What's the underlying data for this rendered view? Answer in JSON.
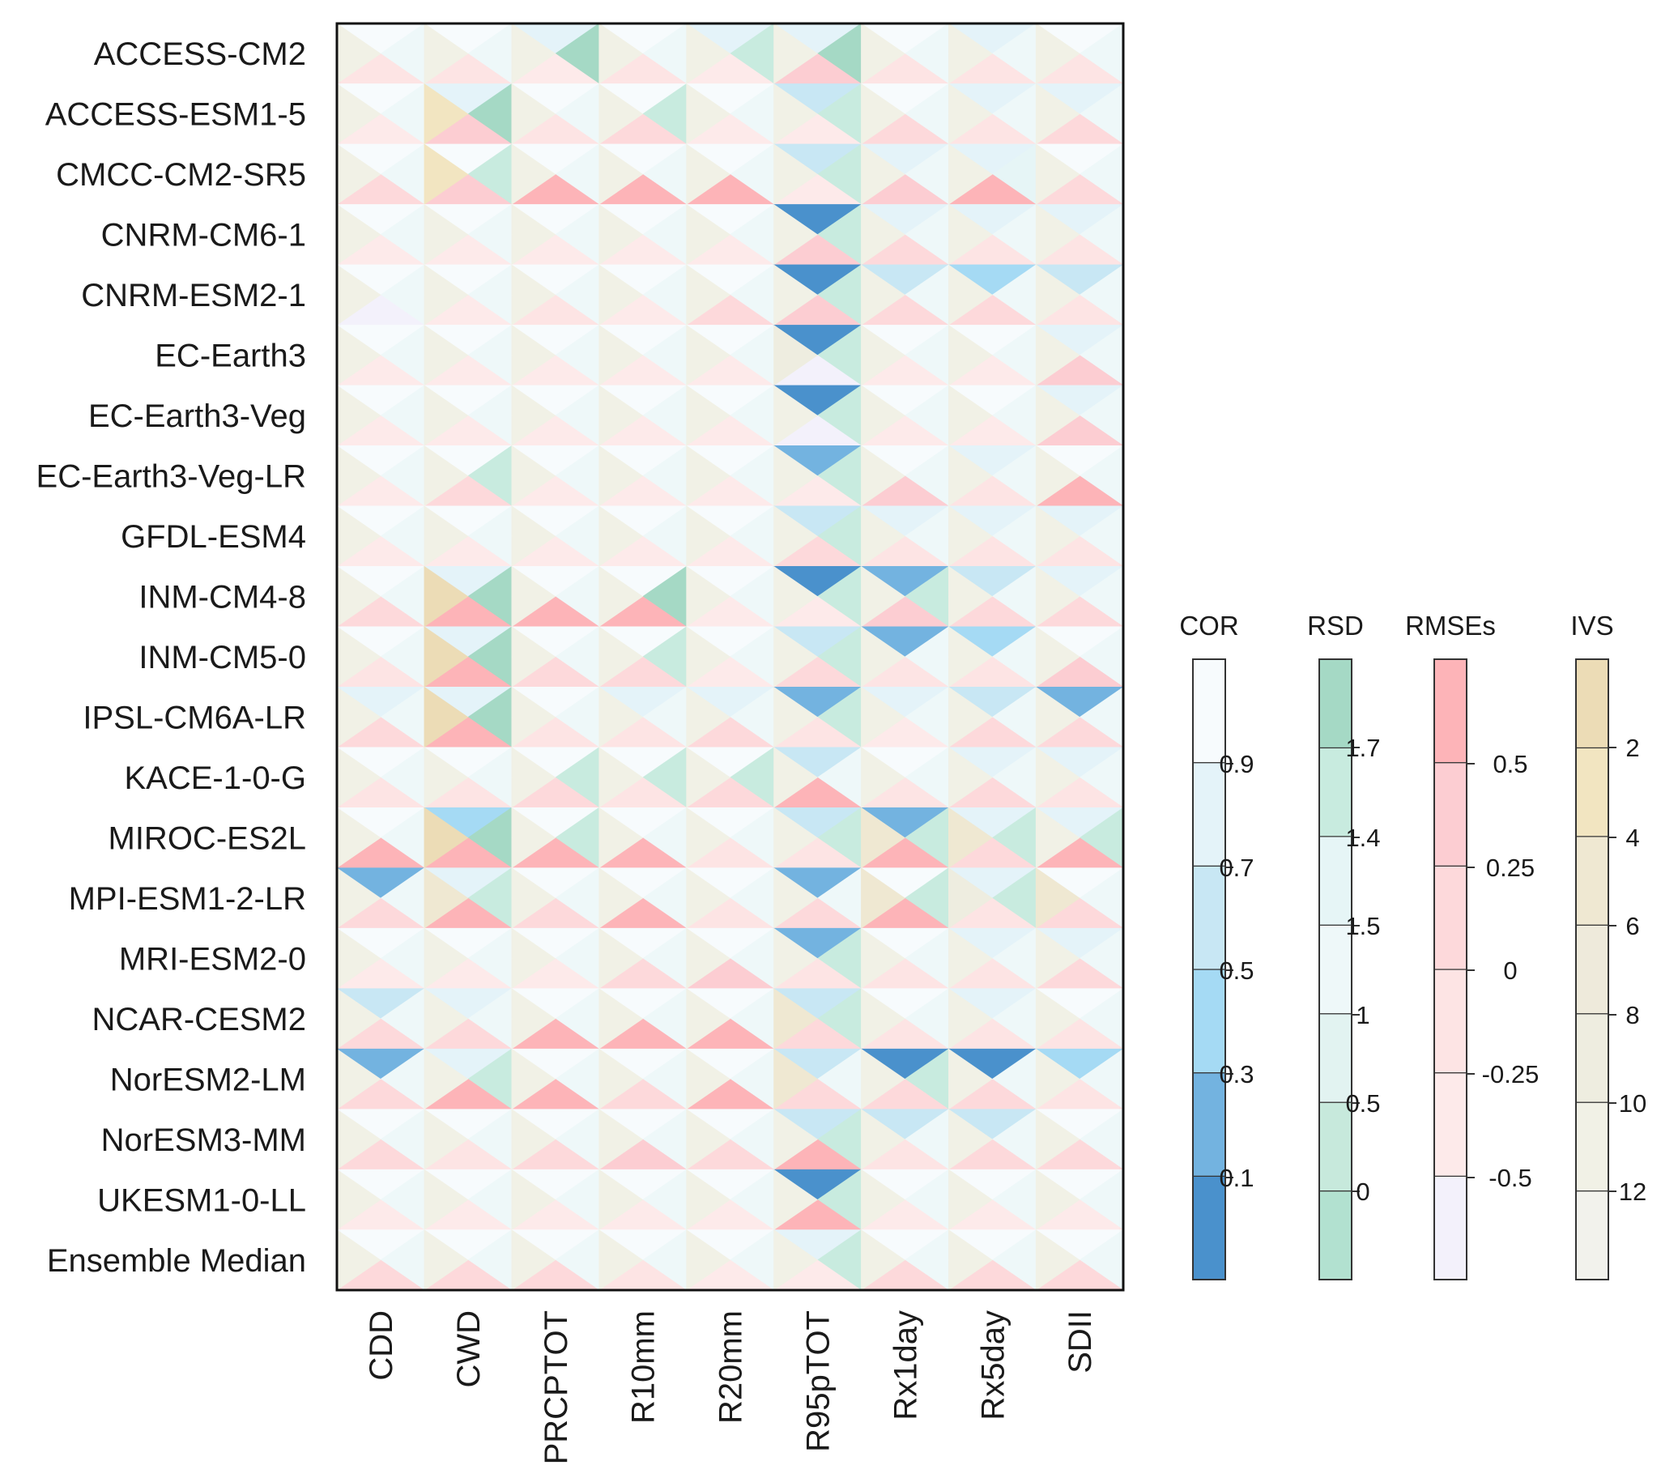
{
  "chart_data": {
    "type": "heatmap",
    "description_of_encoding": "Each cell is split into four triangles: top = COR, right = RSD, bottom = RMSEs, left = IVS; values are class indices into each metric's color scale",
    "models": [
      "ACCESS-CM2",
      "ACCESS-ESM1-5",
      "CMCC-CM2-SR5",
      "CNRM-CM6-1",
      "CNRM-ESM2-1",
      "EC-Earth3",
      "EC-Earth3-Veg",
      "EC-Earth3-Veg-LR",
      "GFDL-ESM4",
      "INM-CM4-8",
      "INM-CM5-0",
      "IPSL-CM6A-LR",
      "KACE-1-0-G",
      "MIROC-ES2L",
      "MPI-ESM1-2-LR",
      "MRI-ESM2-0",
      "NCAR-CESM2",
      "NorESM2-LM",
      "NorESM3-MM",
      "UKESM1-0-LL",
      "Ensemble Median"
    ],
    "indices": [
      "CDD",
      "CWD",
      "PRCPTOT",
      "R10mm",
      "R20mm",
      "R95pTOT",
      "Rx1day",
      "Rx5day",
      "SDII"
    ],
    "legends": [
      {
        "title": "COR",
        "ticks": [
          "0.9",
          "0.7",
          "0.5",
          "0.3",
          "0.1"
        ],
        "colors": [
          "#4a91cc",
          "#73b3e0",
          "#a5daf4",
          "#c8e7f4",
          "#e4f3f9",
          "#f7fbfd"
        ]
      },
      {
        "title": "RSD",
        "ticks": [
          "1.7",
          "1.4",
          "1.5",
          "1",
          "0.5",
          "0"
        ],
        "colors": [
          "#b2e1d0",
          "#c7e9dc",
          "#e2f3f1",
          "#eef8f9",
          "#e6f5f6",
          "#c8ebdf",
          "#a5d9c5"
        ]
      },
      {
        "title": "RMSEs",
        "ticks": [
          "0.5",
          "0.25",
          "0",
          "-0.25",
          "-0.5"
        ],
        "colors": [
          "#f3f1fb",
          "#fdeaea",
          "#fde4e4",
          "#fdd9db",
          "#fccdd2",
          "#fdb4b8"
        ]
      },
      {
        "title": "IVS",
        "ticks": [
          "2",
          "4",
          "6",
          "8",
          "10",
          "12"
        ],
        "colors": [
          "#f2f2ec",
          "#f1f1e6",
          "#eeede0",
          "#eeeadb",
          "#efe8d2",
          "#f2e5c1",
          "#ecdcb6"
        ]
      }
    ],
    "triangle_classes": {
      "COR": [
        [
          5,
          5,
          4,
          5,
          4,
          4,
          5,
          4,
          5
        ],
        [
          5,
          4,
          5,
          5,
          5,
          3,
          5,
          4,
          4
        ],
        [
          5,
          5,
          5,
          5,
          5,
          3,
          4,
          4,
          5
        ],
        [
          5,
          5,
          5,
          5,
          5,
          0,
          4,
          4,
          4
        ],
        [
          5,
          5,
          5,
          5,
          5,
          0,
          3,
          2,
          3
        ],
        [
          5,
          5,
          5,
          5,
          5,
          0,
          5,
          5,
          4
        ],
        [
          5,
          5,
          5,
          5,
          5,
          0,
          5,
          5,
          4
        ],
        [
          5,
          5,
          5,
          5,
          5,
          1,
          5,
          4,
          5
        ],
        [
          5,
          5,
          5,
          5,
          5,
          3,
          4,
          4,
          4
        ],
        [
          5,
          4,
          5,
          5,
          5,
          0,
          1,
          3,
          4
        ],
        [
          5,
          4,
          5,
          5,
          5,
          3,
          1,
          2,
          5
        ],
        [
          4,
          4,
          5,
          4,
          4,
          1,
          4,
          3,
          1
        ],
        [
          5,
          5,
          5,
          5,
          5,
          3,
          5,
          4,
          4
        ],
        [
          5,
          2,
          5,
          5,
          5,
          3,
          1,
          4,
          4
        ],
        [
          1,
          4,
          5,
          5,
          5,
          1,
          5,
          4,
          5
        ],
        [
          5,
          5,
          5,
          5,
          5,
          1,
          5,
          4,
          4
        ],
        [
          3,
          4,
          5,
          5,
          5,
          3,
          5,
          4,
          5
        ],
        [
          1,
          4,
          5,
          5,
          5,
          3,
          0,
          0,
          2
        ],
        [
          5,
          5,
          5,
          5,
          5,
          3,
          3,
          3,
          5
        ],
        [
          5,
          5,
          5,
          5,
          5,
          0,
          5,
          5,
          5
        ],
        [
          5,
          5,
          5,
          5,
          5,
          4,
          5,
          5,
          5
        ]
      ],
      "RSD": [
        [
          3,
          3,
          6,
          3,
          5,
          6,
          3,
          3,
          3
        ],
        [
          3,
          6,
          3,
          5,
          3,
          5,
          3,
          3,
          3
        ],
        [
          3,
          5,
          3,
          3,
          3,
          5,
          3,
          4,
          3
        ],
        [
          3,
          3,
          3,
          3,
          3,
          5,
          3,
          3,
          3
        ],
        [
          3,
          3,
          3,
          3,
          3,
          5,
          3,
          3,
          3
        ],
        [
          3,
          3,
          3,
          3,
          3,
          5,
          3,
          3,
          3
        ],
        [
          3,
          3,
          3,
          3,
          3,
          5,
          3,
          3,
          3
        ],
        [
          3,
          5,
          3,
          3,
          3,
          5,
          3,
          3,
          3
        ],
        [
          3,
          3,
          3,
          3,
          3,
          5,
          3,
          3,
          3
        ],
        [
          3,
          6,
          3,
          6,
          3,
          5,
          5,
          3,
          3
        ],
        [
          3,
          6,
          3,
          5,
          3,
          5,
          3,
          3,
          3
        ],
        [
          3,
          6,
          3,
          3,
          3,
          5,
          3,
          3,
          3
        ],
        [
          3,
          3,
          5,
          5,
          5,
          3,
          3,
          3,
          3
        ],
        [
          3,
          6,
          5,
          3,
          3,
          5,
          5,
          5,
          5
        ],
        [
          3,
          5,
          3,
          3,
          3,
          3,
          5,
          5,
          3
        ],
        [
          3,
          3,
          3,
          3,
          3,
          5,
          3,
          3,
          3
        ],
        [
          3,
          3,
          3,
          3,
          3,
          5,
          3,
          3,
          3
        ],
        [
          3,
          5,
          3,
          3,
          3,
          3,
          5,
          3,
          3
        ],
        [
          3,
          3,
          3,
          3,
          3,
          5,
          3,
          3,
          3
        ],
        [
          3,
          3,
          3,
          3,
          3,
          5,
          3,
          3,
          3
        ],
        [
          3,
          3,
          3,
          3,
          3,
          5,
          3,
          3,
          3
        ]
      ],
      "RMSEs": [
        [
          2,
          2,
          1,
          2,
          1,
          4,
          2,
          2,
          2
        ],
        [
          1,
          4,
          2,
          3,
          1,
          1,
          3,
          2,
          3
        ],
        [
          3,
          4,
          5,
          5,
          5,
          1,
          4,
          5,
          3
        ],
        [
          1,
          1,
          1,
          1,
          1,
          4,
          3,
          2,
          2
        ],
        [
          0,
          1,
          2,
          1,
          3,
          4,
          3,
          3,
          2
        ],
        [
          1,
          1,
          1,
          1,
          1,
          0,
          1,
          1,
          4
        ],
        [
          1,
          1,
          1,
          1,
          1,
          0,
          1,
          1,
          4
        ],
        [
          1,
          3,
          1,
          1,
          1,
          1,
          4,
          2,
          5
        ],
        [
          1,
          1,
          1,
          1,
          1,
          3,
          2,
          2,
          2
        ],
        [
          3,
          5,
          5,
          5,
          1,
          1,
          4,
          3,
          3
        ],
        [
          2,
          5,
          3,
          3,
          1,
          3,
          2,
          2,
          4
        ],
        [
          3,
          5,
          2,
          2,
          3,
          2,
          1,
          3,
          3
        ],
        [
          2,
          2,
          3,
          2,
          3,
          5,
          2,
          3,
          2
        ],
        [
          5,
          5,
          5,
          5,
          2,
          2,
          5,
          3,
          5
        ],
        [
          3,
          5,
          3,
          5,
          2,
          3,
          5,
          2,
          3
        ],
        [
          1,
          1,
          1,
          3,
          4,
          2,
          2,
          2,
          3
        ],
        [
          3,
          3,
          5,
          5,
          5,
          3,
          2,
          2,
          2
        ],
        [
          3,
          5,
          5,
          3,
          5,
          3,
          3,
          3,
          2
        ],
        [
          3,
          2,
          3,
          4,
          3,
          5,
          2,
          3,
          3
        ],
        [
          1,
          1,
          1,
          1,
          1,
          5,
          1,
          1,
          1
        ],
        [
          3,
          3,
          3,
          2,
          1,
          1,
          3,
          3,
          3
        ]
      ],
      "IVS": [
        [
          1,
          1,
          1,
          1,
          1,
          1,
          1,
          1,
          1
        ],
        [
          1,
          5,
          1,
          1,
          1,
          1,
          1,
          1,
          1
        ],
        [
          1,
          5,
          1,
          1,
          1,
          1,
          1,
          1,
          1
        ],
        [
          1,
          1,
          1,
          1,
          1,
          1,
          1,
          1,
          1
        ],
        [
          1,
          1,
          1,
          1,
          1,
          1,
          1,
          1,
          1
        ],
        [
          1,
          1,
          1,
          1,
          1,
          2,
          1,
          1,
          1
        ],
        [
          1,
          1,
          1,
          1,
          1,
          1,
          1,
          1,
          1
        ],
        [
          1,
          1,
          1,
          1,
          1,
          1,
          1,
          1,
          1
        ],
        [
          1,
          1,
          1,
          1,
          1,
          1,
          1,
          1,
          1
        ],
        [
          1,
          6,
          1,
          1,
          1,
          1,
          1,
          1,
          1
        ],
        [
          1,
          6,
          1,
          1,
          1,
          1,
          1,
          1,
          1
        ],
        [
          1,
          6,
          1,
          1,
          1,
          1,
          1,
          1,
          1
        ],
        [
          1,
          1,
          1,
          1,
          1,
          1,
          1,
          1,
          1
        ],
        [
          1,
          6,
          1,
          1,
          1,
          1,
          4,
          4,
          1
        ],
        [
          1,
          4,
          1,
          1,
          1,
          1,
          4,
          2,
          4
        ],
        [
          1,
          1,
          1,
          1,
          1,
          1,
          1,
          1,
          1
        ],
        [
          1,
          1,
          1,
          1,
          1,
          4,
          1,
          1,
          1
        ],
        [
          1,
          1,
          1,
          1,
          1,
          4,
          1,
          1,
          1
        ],
        [
          1,
          1,
          1,
          1,
          1,
          1,
          1,
          1,
          1
        ],
        [
          1,
          1,
          1,
          1,
          1,
          1,
          1,
          1,
          1
        ],
        [
          1,
          1,
          1,
          1,
          1,
          1,
          1,
          1,
          1
        ]
      ]
    }
  }
}
